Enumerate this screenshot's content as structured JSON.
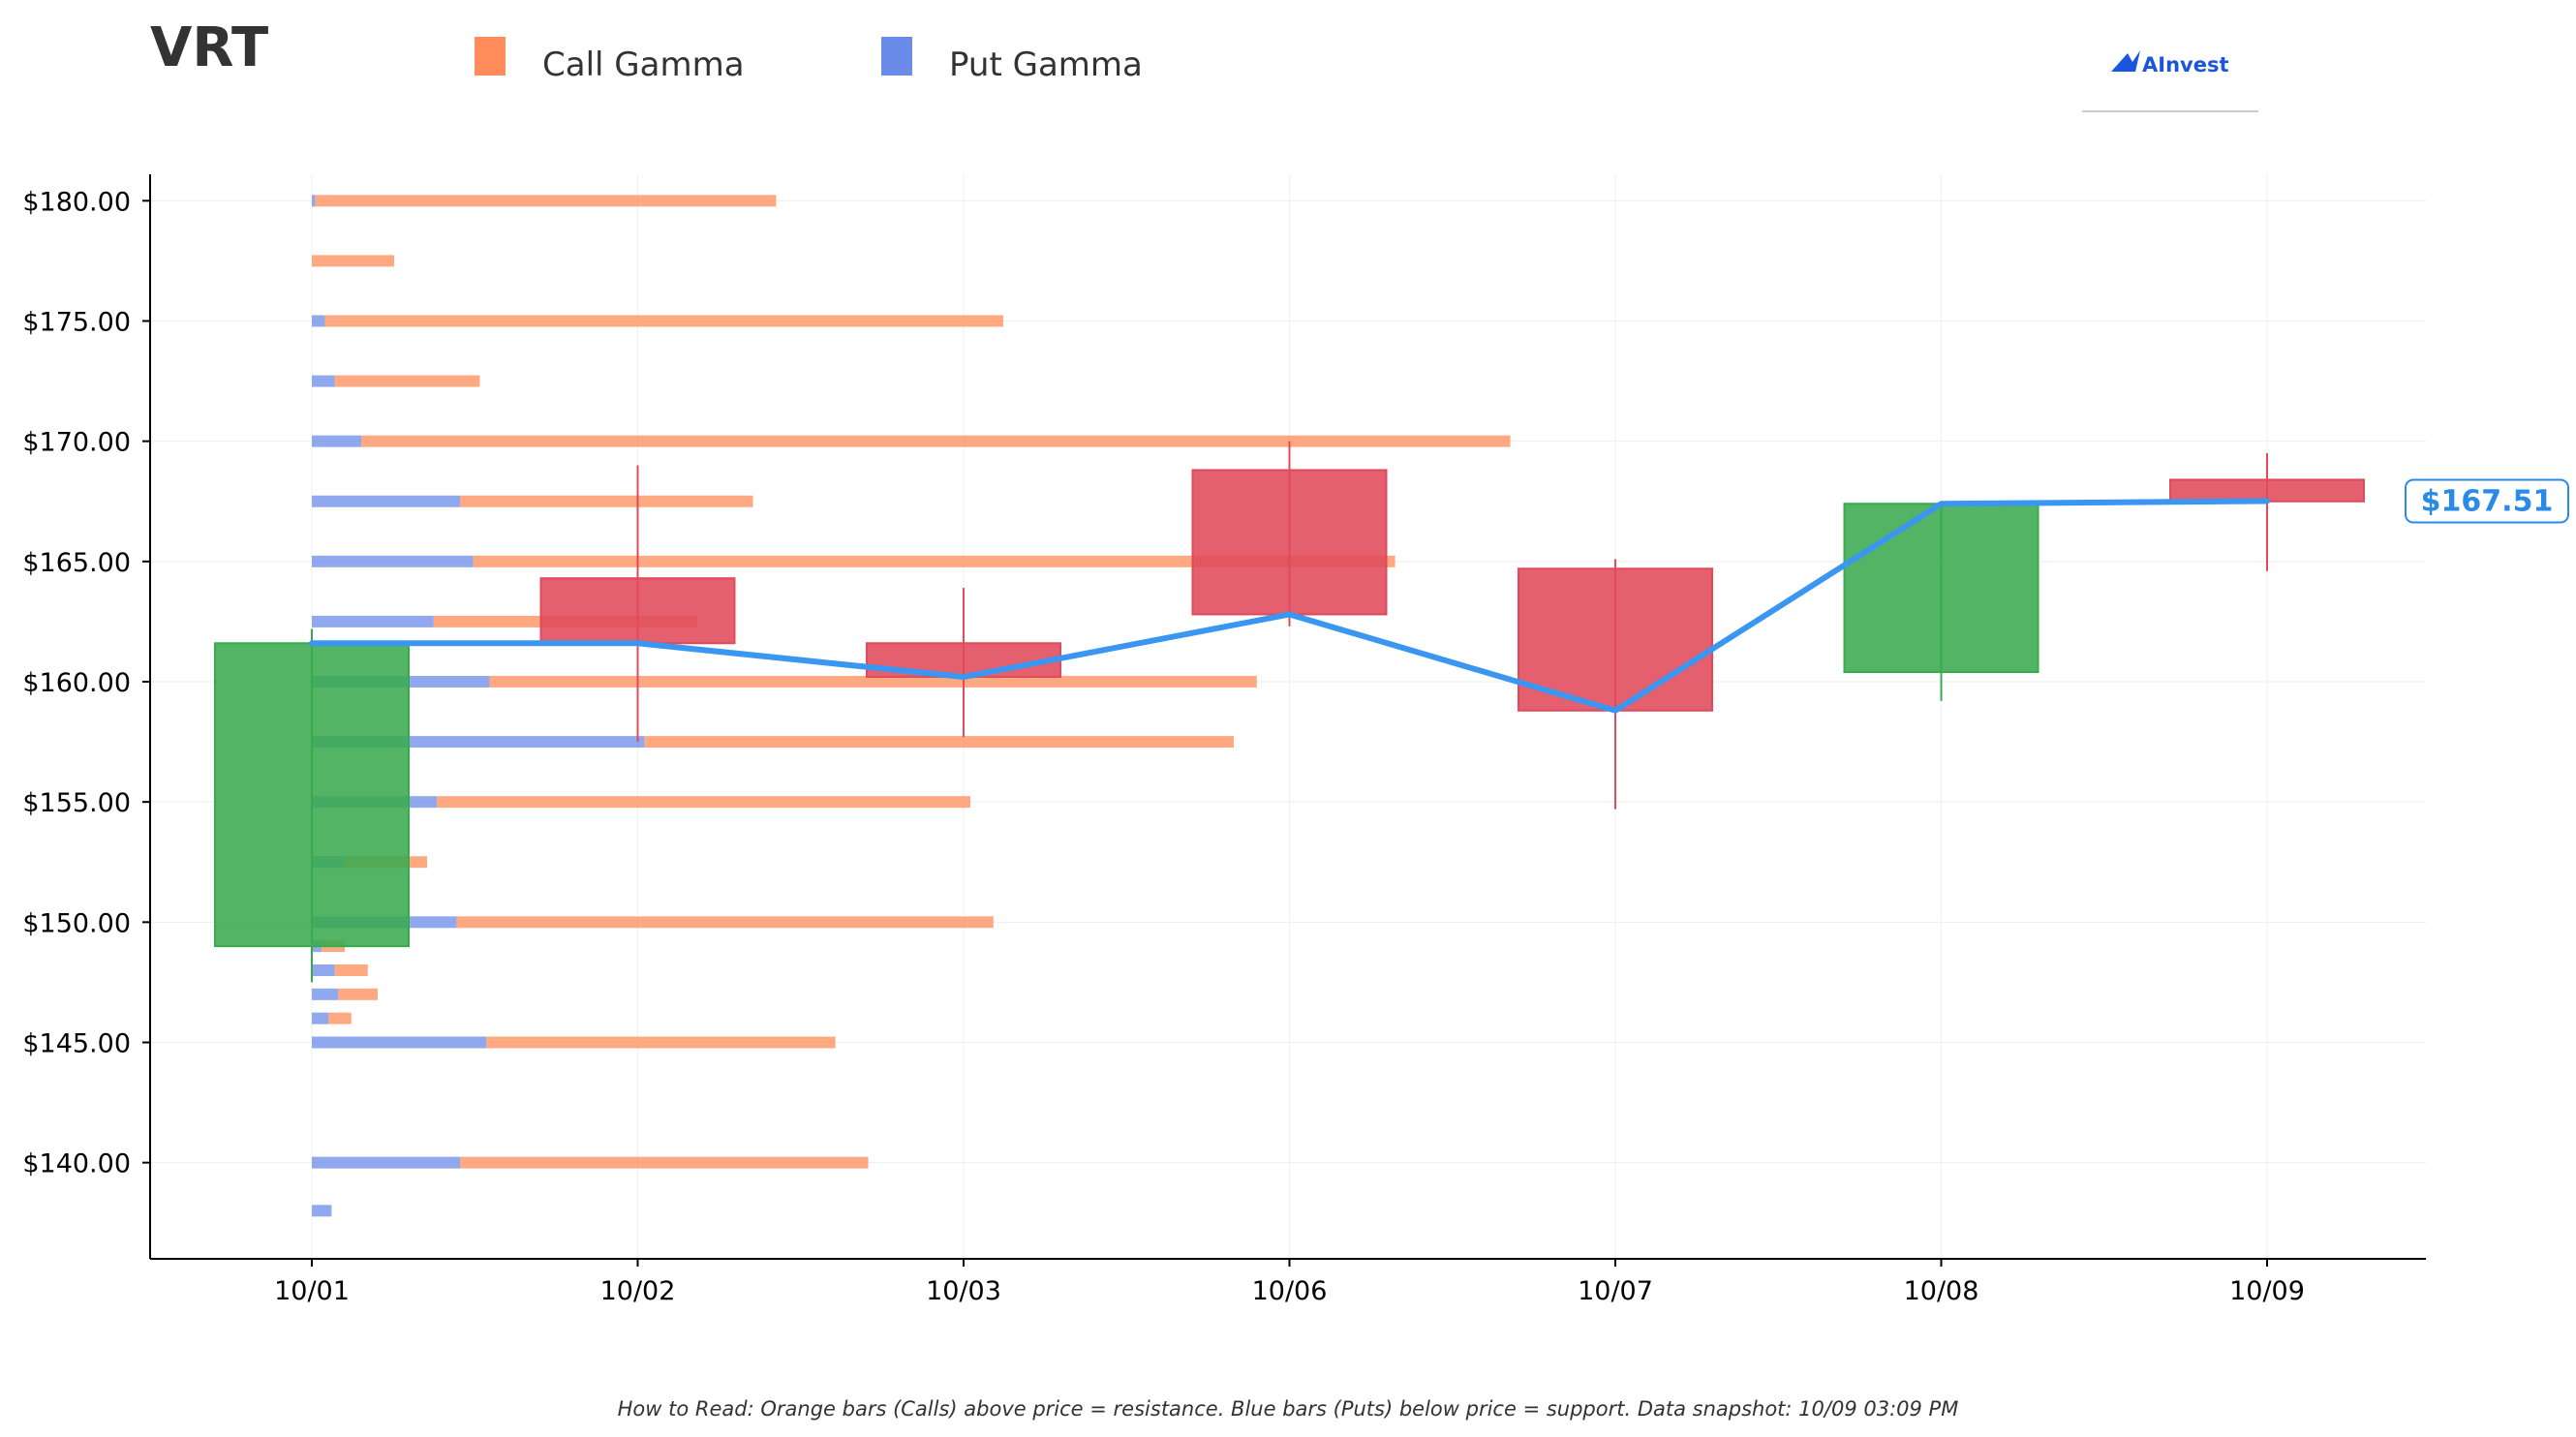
{
  "ticker": "VRT",
  "brand": {
    "name": "AInvest",
    "color": "#1a56db"
  },
  "legend": [
    {
      "label": "Call Gamma",
      "color": "#ff8c5a"
    },
    {
      "label": "Put Gamma",
      "color": "#6b8be8"
    }
  ],
  "footnote": "How to Read: Orange bars (Calls) above price = resistance. Blue bars (Puts) below price = support. Data snapshot: 10/09 03:09 PM",
  "colors": {
    "call": "#ff8c5a",
    "put": "#6b8be8",
    "up": "#3aaa4e",
    "down": "#e04a5a",
    "line": "#3a96f0",
    "badge": "#2a8ae8"
  },
  "chart_data": {
    "type": "candlestick",
    "title": "VRT",
    "ylim": [
      136,
      181.1
    ],
    "y_ticks": [
      140,
      145,
      150,
      155,
      160,
      165,
      170,
      175,
      180
    ],
    "y_tick_labels": [
      "$140.00",
      "$145.00",
      "$150.00",
      "$155.00",
      "$160.00",
      "$165.00",
      "$170.00",
      "$175.00",
      "$180.00"
    ],
    "categories": [
      "10/01",
      "10/02",
      "10/03",
      "10/06",
      "10/07",
      "10/08",
      "10/09"
    ],
    "candles": [
      {
        "date": "10/01",
        "open": 149.0,
        "high": 162.2,
        "low": 147.5,
        "close": 161.6
      },
      {
        "date": "10/02",
        "open": 164.3,
        "high": 169.0,
        "low": 157.5,
        "close": 161.6
      },
      {
        "date": "10/03",
        "open": 161.6,
        "high": 163.9,
        "low": 157.7,
        "close": 160.2
      },
      {
        "date": "10/06",
        "open": 168.8,
        "high": 170.0,
        "low": 162.3,
        "close": 162.8
      },
      {
        "date": "10/07",
        "open": 164.7,
        "high": 165.1,
        "low": 154.7,
        "close": 158.8
      },
      {
        "date": "10/08",
        "open": 160.4,
        "high": 167.5,
        "low": 159.2,
        "close": 167.4
      },
      {
        "date": "10/09",
        "open": 168.4,
        "high": 169.5,
        "low": 164.6,
        "close": 167.5
      }
    ],
    "close_line": [
      161.6,
      161.6,
      160.2,
      162.8,
      158.8,
      167.4,
      167.51
    ],
    "current_price": 167.51,
    "current_price_label": "$167.51",
    "gamma_axis_max": 1.0,
    "gamma_levels": [
      {
        "strike": 180.0,
        "put": 0.01,
        "call": 1.4
      },
      {
        "strike": 177.5,
        "put": 0.0,
        "call": 0.25
      },
      {
        "strike": 175.0,
        "put": 0.04,
        "call": 2.06
      },
      {
        "strike": 172.5,
        "put": 0.07,
        "call": 0.44
      },
      {
        "strike": 170.0,
        "put": 0.15,
        "call": 3.49
      },
      {
        "strike": 167.5,
        "put": 0.45,
        "call": 0.89
      },
      {
        "strike": 165.0,
        "put": 0.49,
        "call": 2.8
      },
      {
        "strike": 162.5,
        "put": 0.37,
        "call": 0.8
      },
      {
        "strike": 160.0,
        "put": 0.54,
        "call": 2.33
      },
      {
        "strike": 157.5,
        "put": 1.01,
        "call": 1.79
      },
      {
        "strike": 155.0,
        "put": 0.38,
        "call": 1.62
      },
      {
        "strike": 152.5,
        "put": 0.1,
        "call": 0.25
      },
      {
        "strike": 150.0,
        "put": 0.44,
        "call": 1.63
      },
      {
        "strike": 149.0,
        "put": 0.03,
        "call": 0.07
      },
      {
        "strike": 148.0,
        "put": 0.07,
        "call": 0.1
      },
      {
        "strike": 147.0,
        "put": 0.08,
        "call": 0.12
      },
      {
        "strike": 146.0,
        "put": 0.05,
        "call": 0.07
      },
      {
        "strike": 145.0,
        "put": 0.53,
        "call": 1.06
      },
      {
        "strike": 140.0,
        "put": 0.45,
        "call": 1.24
      },
      {
        "strike": 138.0,
        "put": 0.06,
        "call": 0.0
      }
    ],
    "grid": true,
    "legend_position": "top"
  }
}
